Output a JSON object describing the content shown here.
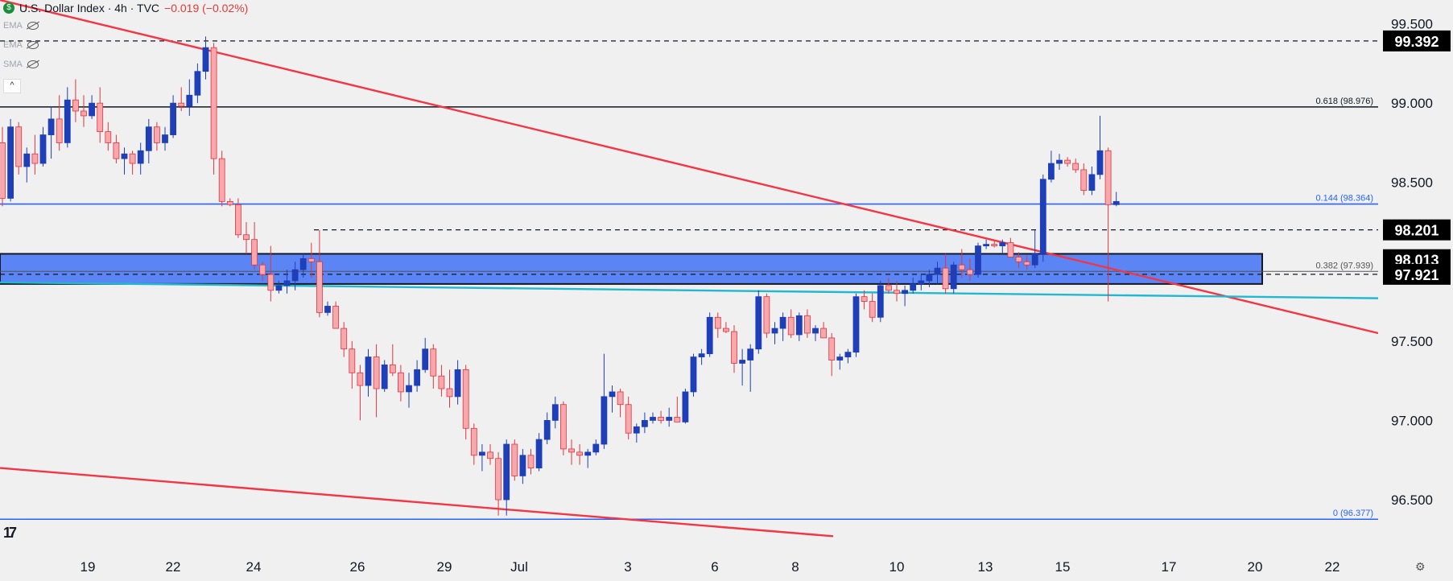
{
  "header": {
    "title": "U.S. Dollar Index · 4h · TVC",
    "change": "−0.019 (−0.02%)",
    "flag_glyph": "$"
  },
  "indicators": [
    {
      "label": "EMA",
      "icon": "eye-off-icon"
    },
    {
      "label": "EMA",
      "icon": "eye-off-icon"
    },
    {
      "label": "SMA",
      "icon": "eye-off-icon"
    }
  ],
  "collapse_glyph": "^",
  "logo_text": "17",
  "settings_glyph": "⚙",
  "chart_data": {
    "type": "candlestick",
    "y_range": [
      96.15,
      99.65
    ],
    "y_ticks": [
      "99.500",
      "99.000",
      "98.500",
      "97.500",
      "97.000",
      "96.500"
    ],
    "x_ticks": [
      "19",
      "22",
      "24",
      "26",
      "29",
      "Jul",
      "3",
      "6",
      "8",
      "10",
      "13",
      "15",
      "17",
      "20",
      "22"
    ],
    "price_labels": [
      {
        "text": "99.392",
        "value": 99.392
      },
      {
        "text": "98.201",
        "value": 98.201
      },
      {
        "text": "98.013",
        "value": 98.013
      },
      {
        "text": "97.921",
        "value": 97.921
      }
    ],
    "fib_levels": [
      {
        "label": "0.618 (98.976)",
        "value": 98.976,
        "color": "#131722"
      },
      {
        "label": "0.144 (98.364)",
        "value": 98.364,
        "color": "#2962ff"
      },
      {
        "label": "0.382 (97.939)",
        "value": 97.939,
        "color": "#555555"
      },
      {
        "label": "0 (96.377)",
        "value": 96.377,
        "color": "#2962ff"
      }
    ],
    "zone": {
      "top": 98.05,
      "bottom": 97.86
    },
    "dashed_levels": [
      99.392,
      98.201,
      97.921
    ],
    "trendlines": [
      {
        "color": "#f23645",
        "points": [
          [
            0,
            99.65
          ],
          [
            1712,
            97.55
          ]
        ]
      },
      {
        "color": "#f23645",
        "points": [
          [
            0,
            96.7
          ],
          [
            1035,
            96.27
          ]
        ]
      },
      {
        "color": "#22b8cf",
        "points": [
          [
            0,
            97.87
          ],
          [
            1712,
            97.77
          ]
        ]
      }
    ],
    "candles": [
      [
        98.75,
        98.85,
        98.35,
        98.4
      ],
      [
        98.4,
        98.9,
        98.38,
        98.85
      ],
      [
        98.85,
        98.88,
        98.55,
        98.6
      ],
      [
        98.6,
        98.72,
        98.5,
        98.68
      ],
      [
        98.68,
        98.8,
        98.55,
        98.62
      ],
      [
        98.62,
        98.85,
        98.6,
        98.8
      ],
      [
        98.8,
        98.98,
        98.65,
        98.9
      ],
      [
        98.9,
        99.05,
        98.7,
        98.75
      ],
      [
        98.75,
        99.1,
        98.72,
        99.02
      ],
      [
        99.02,
        99.15,
        98.88,
        98.95
      ],
      [
        98.95,
        99.05,
        98.85,
        98.92
      ],
      [
        98.92,
        99.05,
        98.9,
        99.0
      ],
      [
        99.0,
        99.1,
        98.75,
        98.82
      ],
      [
        98.82,
        98.88,
        98.7,
        98.75
      ],
      [
        98.75,
        98.8,
        98.62,
        98.65
      ],
      [
        98.65,
        98.72,
        98.55,
        98.68
      ],
      [
        98.68,
        98.7,
        98.55,
        98.62
      ],
      [
        98.62,
        98.75,
        98.55,
        98.7
      ],
      [
        98.7,
        98.9,
        98.62,
        98.85
      ],
      [
        98.85,
        98.88,
        98.7,
        98.75
      ],
      [
        98.75,
        98.85,
        98.7,
        98.8
      ],
      [
        98.8,
        99.05,
        98.78,
        99.0
      ],
      [
        99.0,
        99.1,
        98.95,
        98.98
      ],
      [
        98.98,
        99.15,
        98.92,
        99.05
      ],
      [
        99.05,
        99.25,
        99.0,
        99.2
      ],
      [
        99.2,
        99.42,
        99.15,
        99.35
      ],
      [
        99.35,
        99.38,
        98.55,
        98.65
      ],
      [
        98.65,
        98.7,
        98.35,
        98.38
      ],
      [
        98.38,
        98.4,
        98.35,
        98.36
      ],
      [
        98.36,
        98.4,
        98.15,
        98.17
      ],
      [
        98.17,
        98.25,
        98.05,
        98.14
      ],
      [
        98.14,
        98.25,
        97.95,
        97.98
      ],
      [
        97.98,
        98.0,
        97.88,
        97.92
      ],
      [
        97.92,
        98.1,
        97.75,
        97.82
      ],
      [
        97.82,
        97.88,
        97.8,
        97.85
      ],
      [
        97.85,
        97.95,
        97.8,
        97.88
      ],
      [
        97.88,
        98.0,
        97.82,
        97.95
      ],
      [
        97.95,
        98.05,
        97.9,
        98.02
      ],
      [
        98.02,
        98.12,
        97.9,
        98.0
      ],
      [
        98.0,
        98.2,
        97.65,
        97.68
      ],
      [
        97.68,
        97.75,
        97.66,
        97.72
      ],
      [
        97.72,
        97.75,
        97.6,
        97.58
      ],
      [
        97.58,
        97.62,
        97.4,
        97.45
      ],
      [
        97.45,
        97.5,
        97.2,
        97.3
      ],
      [
        97.3,
        97.35,
        97.0,
        97.22
      ],
      [
        97.22,
        97.45,
        97.15,
        97.4
      ],
      [
        97.4,
        97.48,
        97.02,
        97.2
      ],
      [
        97.2,
        97.38,
        97.18,
        97.35
      ],
      [
        97.35,
        97.48,
        97.28,
        97.3
      ],
      [
        97.3,
        97.35,
        97.12,
        97.18
      ],
      [
        97.18,
        97.3,
        97.08,
        97.22
      ],
      [
        97.22,
        97.38,
        97.18,
        97.32
      ],
      [
        97.32,
        97.52,
        97.3,
        97.45
      ],
      [
        97.45,
        97.48,
        97.2,
        97.28
      ],
      [
        97.28,
        97.35,
        97.15,
        97.2
      ],
      [
        97.2,
        97.32,
        97.08,
        97.15
      ],
      [
        97.15,
        97.38,
        97.1,
        97.32
      ],
      [
        97.32,
        97.35,
        96.88,
        96.95
      ],
      [
        96.95,
        96.98,
        96.72,
        96.78
      ],
      [
        96.78,
        96.85,
        96.68,
        96.8
      ],
      [
        96.8,
        96.85,
        96.72,
        96.76
      ],
      [
        96.76,
        96.8,
        96.4,
        96.5
      ],
      [
        96.5,
        96.88,
        96.4,
        96.85
      ],
      [
        96.85,
        96.88,
        96.62,
        96.65
      ],
      [
        96.65,
        96.82,
        96.6,
        96.78
      ],
      [
        96.78,
        96.82,
        96.66,
        96.7
      ],
      [
        96.7,
        96.92,
        96.68,
        96.88
      ],
      [
        96.88,
        97.05,
        96.85,
        97.0
      ],
      [
        97.0,
        97.15,
        96.95,
        97.1
      ],
      [
        97.1,
        97.12,
        96.78,
        96.82
      ],
      [
        96.82,
        96.88,
        96.72,
        96.8
      ],
      [
        96.8,
        96.85,
        96.72,
        96.78
      ],
      [
        96.78,
        96.82,
        96.7,
        96.8
      ],
      [
        96.8,
        96.88,
        96.78,
        96.85
      ],
      [
        96.85,
        97.42,
        96.82,
        97.15
      ],
      [
        97.15,
        97.22,
        97.05,
        97.18
      ],
      [
        97.18,
        97.2,
        97.02,
        97.1
      ],
      [
        97.1,
        97.15,
        96.88,
        96.92
      ],
      [
        96.92,
        96.98,
        96.86,
        96.96
      ],
      [
        96.96,
        97.05,
        96.92,
        97.0
      ],
      [
        97.0,
        97.05,
        96.98,
        97.02
      ],
      [
        97.02,
        97.06,
        96.98,
        97.0
      ],
      [
        97.0,
        97.08,
        96.96,
        97.02
      ],
      [
        97.02,
        97.15,
        96.99,
        96.99
      ],
      [
        96.99,
        97.2,
        96.98,
        97.18
      ],
      [
        97.18,
        97.42,
        97.15,
        97.4
      ],
      [
        97.4,
        97.45,
        97.35,
        97.42
      ],
      [
        97.42,
        97.68,
        97.4,
        97.65
      ],
      [
        97.65,
        97.68,
        97.52,
        97.58
      ],
      [
        97.58,
        97.62,
        97.55,
        97.56
      ],
      [
        97.56,
        97.6,
        97.3,
        97.36
      ],
      [
        97.36,
        97.45,
        97.22,
        97.38
      ],
      [
        97.38,
        97.48,
        97.18,
        97.45
      ],
      [
        97.45,
        97.82,
        97.42,
        97.78
      ],
      [
        97.78,
        97.8,
        97.52,
        97.55
      ],
      [
        97.55,
        97.62,
        97.48,
        97.58
      ],
      [
        97.58,
        97.68,
        97.5,
        97.65
      ],
      [
        97.65,
        97.7,
        97.52,
        97.54
      ],
      [
        97.54,
        97.68,
        97.5,
        97.66
      ],
      [
        97.66,
        97.7,
        97.52,
        97.55
      ],
      [
        97.55,
        97.6,
        97.5,
        97.58
      ],
      [
        97.58,
        97.62,
        97.52,
        97.52
      ],
      [
        97.52,
        97.55,
        97.28,
        97.38
      ],
      [
        97.38,
        97.42,
        97.32,
        97.4
      ],
      [
        97.4,
        97.45,
        97.36,
        97.43
      ],
      [
        97.43,
        97.8,
        97.4,
        97.78
      ],
      [
        97.78,
        97.82,
        97.7,
        97.75
      ],
      [
        97.75,
        97.8,
        97.62,
        97.65
      ],
      [
        97.65,
        97.88,
        97.62,
        97.85
      ],
      [
        97.85,
        97.9,
        97.8,
        97.82
      ],
      [
        97.82,
        97.88,
        97.75,
        97.8
      ],
      [
        97.8,
        97.85,
        97.72,
        97.82
      ],
      [
        97.82,
        97.9,
        97.8,
        97.86
      ],
      [
        97.86,
        97.92,
        97.82,
        97.88
      ],
      [
        97.88,
        97.95,
        97.84,
        97.92
      ],
      [
        97.92,
        98.0,
        97.86,
        97.96
      ],
      [
        97.96,
        98.05,
        97.8,
        97.83
      ],
      [
        97.83,
        98.0,
        97.8,
        97.98
      ],
      [
        97.98,
        98.08,
        97.9,
        97.95
      ],
      [
        97.95,
        98.02,
        97.88,
        97.92
      ],
      [
        97.92,
        98.12,
        97.9,
        98.1
      ],
      [
        98.1,
        98.14,
        98.08,
        98.11
      ],
      [
        98.11,
        98.13,
        98.09,
        98.1
      ],
      [
        98.1,
        98.14,
        98.05,
        98.12
      ],
      [
        98.12,
        98.15,
        98.03,
        98.03
      ],
      [
        98.03,
        98.06,
        97.96,
        98.0
      ],
      [
        98.0,
        98.04,
        97.95,
        97.98
      ],
      [
        97.98,
        98.2,
        97.96,
        98.05
      ],
      [
        98.05,
        98.55,
        98.0,
        98.52
      ],
      [
        98.52,
        98.7,
        98.5,
        98.62
      ],
      [
        98.62,
        98.68,
        98.58,
        98.64
      ],
      [
        98.64,
        98.66,
        98.6,
        98.62
      ],
      [
        98.62,
        98.65,
        98.56,
        98.58
      ],
      [
        98.58,
        98.62,
        98.42,
        98.45
      ],
      [
        98.45,
        98.6,
        98.42,
        98.55
      ],
      [
        98.55,
        98.92,
        98.52,
        98.7
      ],
      [
        98.7,
        98.72,
        97.75,
        98.36
      ],
      [
        98.36,
        98.44,
        98.35,
        98.38
      ]
    ],
    "current_price_label": "98.013"
  }
}
